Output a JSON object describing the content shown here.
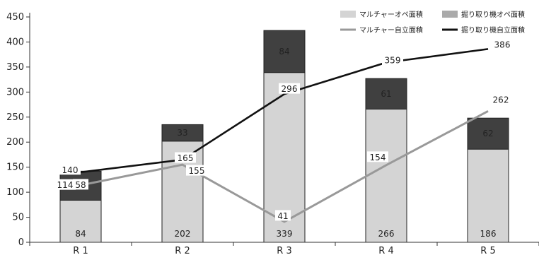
{
  "chart_data": {
    "type": "bar",
    "categories": [
      "R 1",
      "R 2",
      "R 3",
      "R 4",
      "R 5"
    ],
    "ylim": [
      0,
      450
    ],
    "yticks": [
      0,
      50,
      100,
      150,
      200,
      250,
      300,
      350,
      400,
      450
    ],
    "grid": false,
    "legend_position": "top-right",
    "series": [
      {
        "name": "マルチャーオペ面積",
        "kind": "bar-stack",
        "color": "#d4d4d4",
        "values": [
          84,
          202,
          339,
          266,
          186
        ]
      },
      {
        "name": "掘り取り機オペ面積",
        "kind": "bar-stack",
        "color": "#404040",
        "values": [
          58,
          33,
          84,
          61,
          62
        ]
      },
      {
        "name": "マルチャー自立面積",
        "kind": "line",
        "color": "#999999",
        "values": [
          114,
          155,
          41,
          154,
          262
        ]
      },
      {
        "name": "掘り取り機自立面積",
        "kind": "line",
        "color": "#111111",
        "values": [
          140,
          165,
          296,
          359,
          386
        ]
      }
    ]
  }
}
